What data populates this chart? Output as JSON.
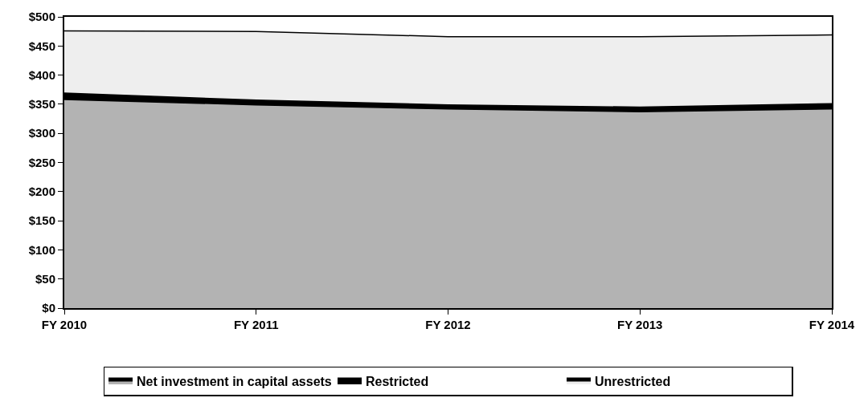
{
  "chart_data": {
    "type": "area",
    "stacked": true,
    "categories": [
      "FY 2010",
      "FY 2011",
      "FY 2012",
      "FY 2013",
      "FY 2014"
    ],
    "series": [
      {
        "name": "Net investment in capital assets",
        "color": "#b3b3b3",
        "values": [
          358,
          349,
          342,
          337,
          342
        ]
      },
      {
        "name": "Restricted",
        "color": "#000000",
        "values": [
          11,
          8,
          7,
          8,
          9
        ]
      },
      {
        "name": "Unrestricted",
        "color": "#eeeeee",
        "values": [
          107,
          118,
          117,
          121,
          118
        ]
      }
    ],
    "ylim": [
      0,
      500
    ],
    "yticks": [
      {
        "value": 0,
        "label": "$0"
      },
      {
        "value": 50,
        "label": "$50"
      },
      {
        "value": 100,
        "label": "$100"
      },
      {
        "value": 150,
        "label": "$150"
      },
      {
        "value": 200,
        "label": "$200"
      },
      {
        "value": 250,
        "label": "$250"
      },
      {
        "value": 300,
        "label": "$300"
      },
      {
        "value": 350,
        "label": "$350"
      },
      {
        "value": 400,
        "label": "$400"
      },
      {
        "value": 450,
        "label": "$450"
      },
      {
        "value": 500,
        "label": "$500"
      }
    ],
    "legend": "bottom"
  }
}
